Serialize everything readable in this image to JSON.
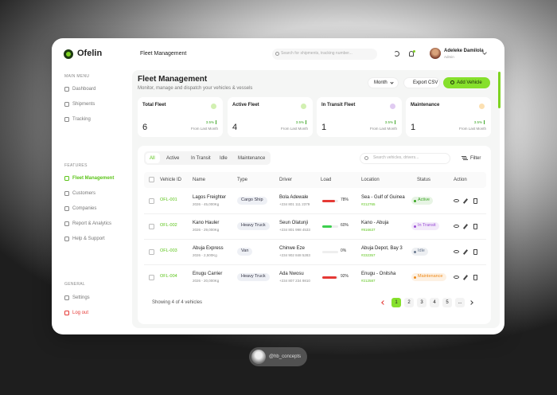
{
  "sidebar": {
    "brand": "Ofelin",
    "sections": [
      {
        "title": "MAIN MENU",
        "items": [
          "Dashboard",
          "Shipments",
          "Tracking"
        ]
      },
      {
        "title": "FEATURES",
        "items": [
          "Fleet Management",
          "Customers",
          "Companies",
          "Report & Analytics",
          "Help & Support"
        ],
        "active": 0
      },
      {
        "title": "GENERAL",
        "items": [
          "Settings",
          "Log out"
        ]
      }
    ]
  },
  "header": {
    "title": "Fleet Management",
    "search_placeholder": "Search for shipments, tracking number...",
    "user": {
      "name": "Adeleke Damilola",
      "role": "Admin"
    }
  },
  "page": {
    "title": "Fleet Management",
    "subtitle": "Monitor, manage and dispatch your vehicles & vessels",
    "buttons": [
      "Month",
      "Export CSV",
      "Add Vehicle"
    ]
  },
  "stats": [
    {
      "label": "Total Fleet",
      "value": 6,
      "change": "3.5%",
      "note": "From Last Month",
      "color": "#7ed321"
    },
    {
      "label": "Active Fleet",
      "value": 4,
      "change": "3.5%",
      "note": "From Last Month",
      "color": "#7ed321"
    },
    {
      "label": "In Transit Fleet",
      "value": 1,
      "change": "3.5%",
      "note": "From Last Month",
      "color": "#a66ad8"
    },
    {
      "label": "Maintenance",
      "value": 1,
      "change": "3.5%",
      "note": "From Last Month",
      "color": "#f5a623"
    }
  ],
  "table": {
    "tabs": [
      "All",
      "Active",
      "In Transit",
      "Idle",
      "Maintenance"
    ],
    "active_tab": 0,
    "search_placeholder": "Search vehicles, drivers...",
    "filter": "Filter",
    "columns": [
      "Vehicle ID",
      "Name",
      "Type",
      "Driver",
      "Load",
      "Location",
      "Status",
      "Action"
    ],
    "rows": [
      {
        "id": "OFL-001",
        "name": "Lagos Freighter",
        "spec": "2026 - 45,000Kg",
        "type": "Cargo Ship",
        "driver": "Bola Adewale",
        "phone": "+234 801 111 2379",
        "load": {
          "value": 78,
          "label": "78%",
          "color": "#e53935"
        },
        "location": "Sea - Gulf of Guinea",
        "code": "#212765",
        "status": "Active",
        "status_color": "#3aa524"
      },
      {
        "id": "OFL-002",
        "name": "Kano Hauler",
        "spec": "2026 - 29,000Kg",
        "type": "Heavy Truck",
        "driver": "Seun Olatunji",
        "phone": "+234 801 998 4533",
        "load": {
          "value": 60,
          "label": "60%",
          "color": "#3ccf4e"
        },
        "location": "Kano - Abuja",
        "code": "#816637",
        "status": "In Transit",
        "status_color": "#9b4fd6"
      },
      {
        "id": "OFL-003",
        "name": "Abuja Express",
        "spec": "2026 - 2,500Kg",
        "type": "Van",
        "driver": "Chinwe Eze",
        "phone": "+234 902 848 5283",
        "load": {
          "value": 0,
          "label": "0%",
          "color": "#bbbbbb"
        },
        "location": "Abuja Depot, Bay 3",
        "code": "#232357",
        "status": "Idle",
        "status_color": "#6b7a90"
      },
      {
        "id": "OFL-004",
        "name": "Enugu Carrier",
        "spec": "2026 - 20,000Kg",
        "type": "Heavy Truck",
        "driver": "Ada Nwosu",
        "phone": "+234 807 234 9810",
        "load": {
          "value": 92,
          "label": "92%",
          "color": "#e53935"
        },
        "location": "Enugu - Onitsha",
        "code": "#212587",
        "status": "Maintenance",
        "status_color": "#ee8a1a"
      }
    ],
    "footer": "Showing 4 of 4 vehicles",
    "pages": [
      "1",
      "2",
      "3",
      "4",
      "5",
      "..."
    ],
    "active_page": 0
  },
  "credit": "@hb_concepts"
}
